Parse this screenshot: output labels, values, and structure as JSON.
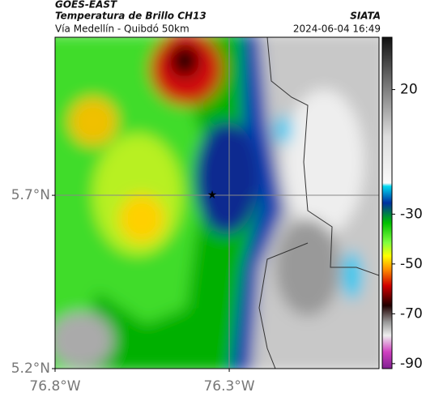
{
  "header": {
    "title": "GOES-EAST",
    "subtitle": "Temperatura de Brillo CH13",
    "source": "SIATA",
    "route": "Vía Medellín - Quibdó 50km",
    "timestamp": "2024-06-04 16:49"
  },
  "map": {
    "xlim": [
      -76.8,
      -75.87
    ],
    "ylim": [
      5.2,
      6.156
    ],
    "xticks": [
      {
        "value": -76.8,
        "label": "76.8°W"
      },
      {
        "value": -76.3,
        "label": "76.3°W"
      }
    ],
    "yticks": [
      {
        "value": 5.2,
        "label": "5.2°N"
      },
      {
        "value": 5.7,
        "label": "5.7°N"
      }
    ]
  },
  "colorbar": {
    "lim": [
      -92,
      41
    ],
    "ticks": [
      20,
      -30,
      -50,
      -70,
      -90
    ]
  }
}
